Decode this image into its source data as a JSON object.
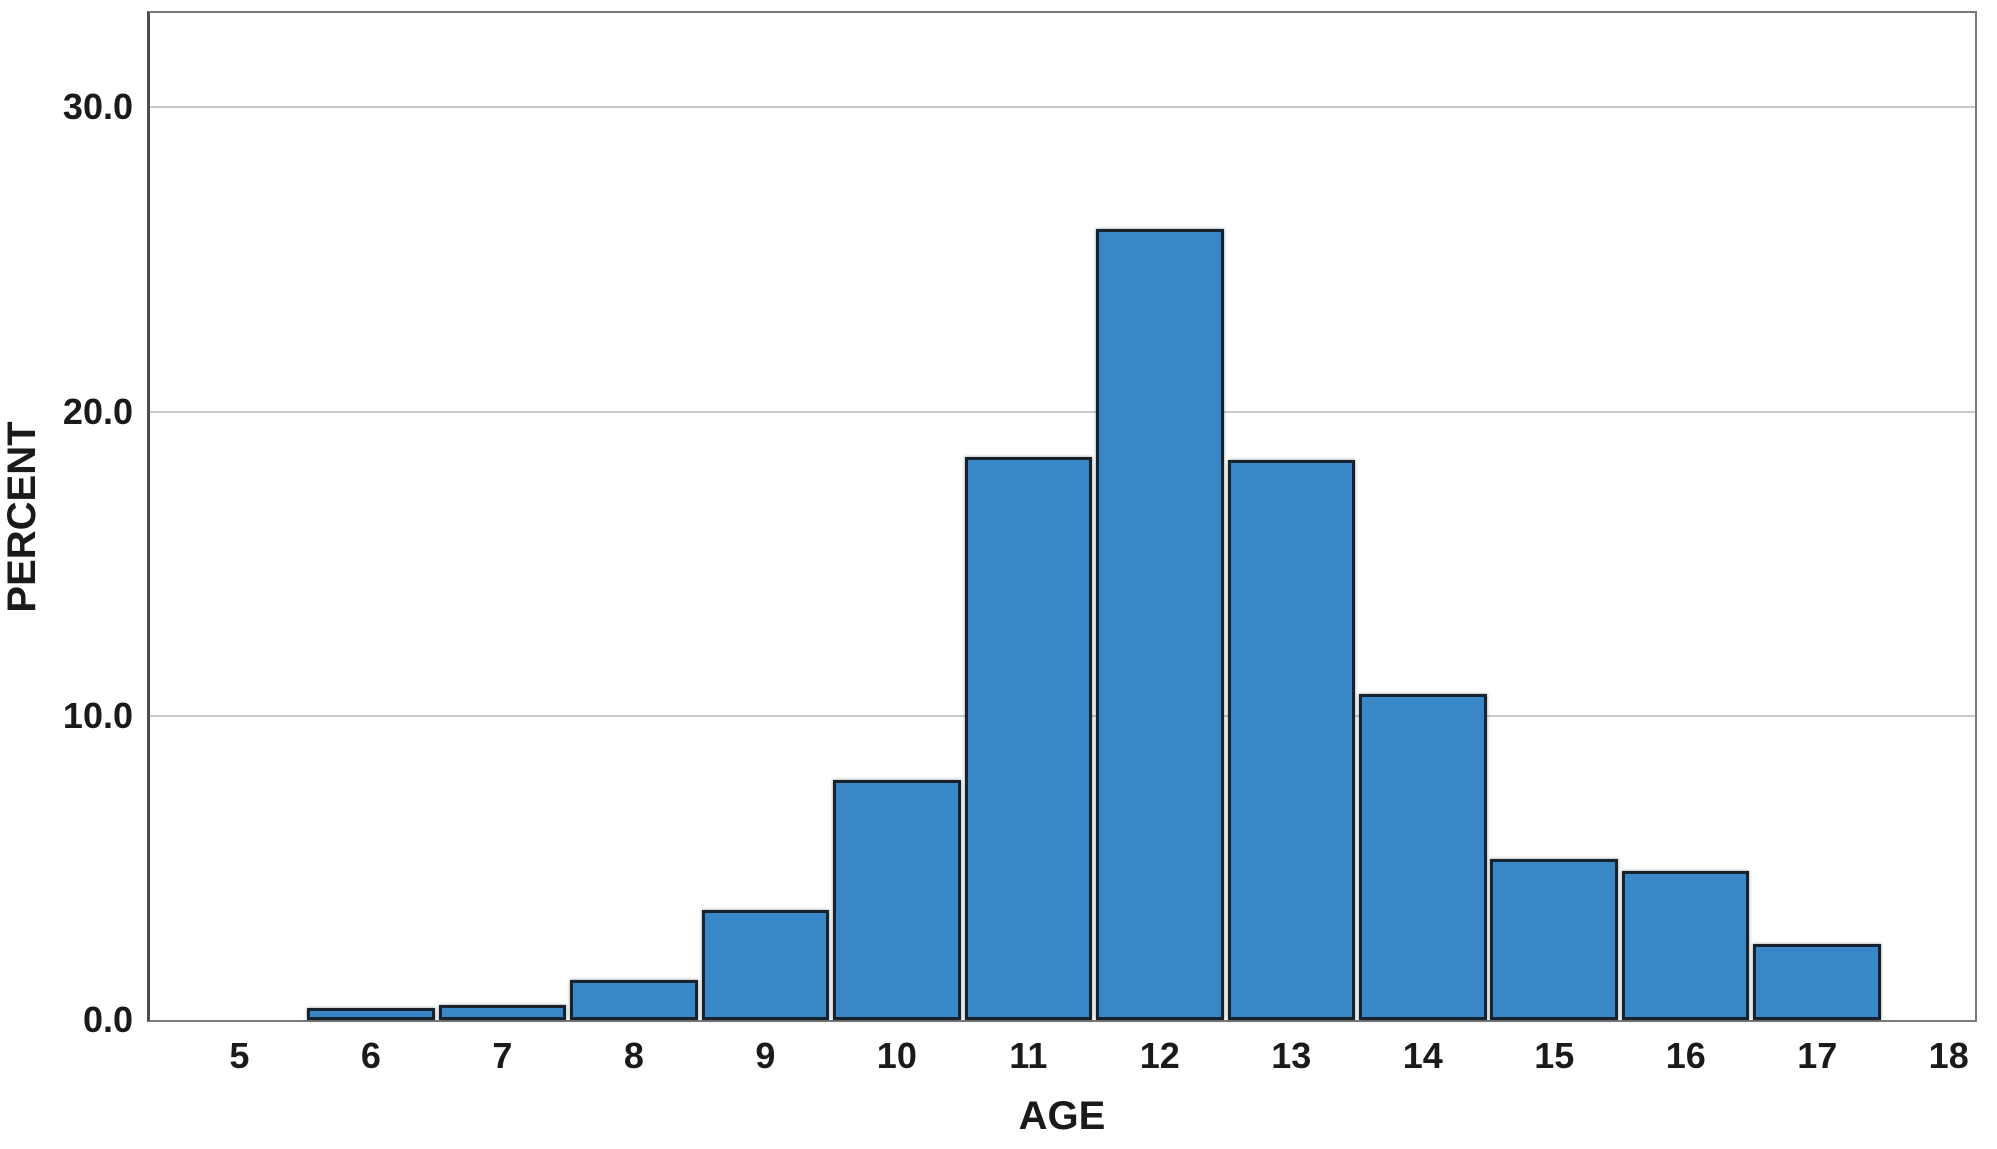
{
  "chart_data": {
    "type": "bar",
    "variant": "histogram",
    "title": "",
    "xlabel": "AGE",
    "ylabel": "PERCENT",
    "categories": [
      6,
      7,
      8,
      9,
      10,
      11,
      12,
      13,
      14,
      15,
      16,
      17
    ],
    "values": [
      0.4,
      0.5,
      1.3,
      3.6,
      7.9,
      18.5,
      26.0,
      18.4,
      10.7,
      5.3,
      4.9,
      2.5
    ],
    "x_tick_labels": [
      "5",
      "6",
      "7",
      "8",
      "9",
      "10",
      "11",
      "12",
      "13",
      "14",
      "15",
      "16",
      "17",
      "18"
    ],
    "x_tick_values": [
      5,
      6,
      7,
      8,
      9,
      10,
      11,
      12,
      13,
      14,
      15,
      16,
      17,
      18
    ],
    "y_tick_labels": [
      "0.0",
      "10.0",
      "20.0",
      "30.0"
    ],
    "y_tick_values": [
      0,
      10,
      20,
      30
    ],
    "xlim": [
      4.32,
      18.2
    ],
    "ylim": [
      0,
      33.1
    ],
    "bar_width": 0.97,
    "grid": "horizontal-only",
    "legend": "none",
    "colors": {
      "bar_fill": "#3A87C8",
      "bar_border": "#16222E",
      "gridline": "#C9C9C9",
      "frame": "#7A7A7A",
      "axis_left": "#4D4D4D",
      "text": "#1A1A1A",
      "background": "#FFFFFF"
    }
  }
}
